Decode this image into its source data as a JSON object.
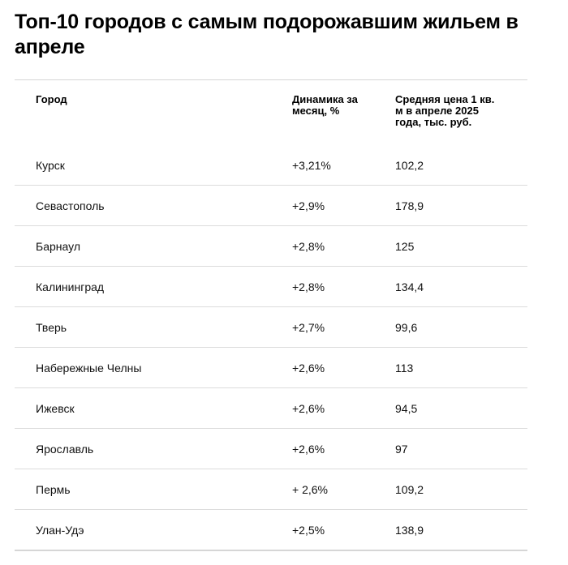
{
  "title": "Топ-10 городов с самым подорожавшим жильем в апреле",
  "table": {
    "headers": [
      "Город",
      "Динамика за месяц, %",
      "Средняя цена 1 кв. м в апреле 2025 года, тыс. руб."
    ],
    "rows": [
      [
        "Курск",
        "+3,21%",
        "102,2"
      ],
      [
        "Севастополь",
        "+2,9%",
        "178,9"
      ],
      [
        "Барнаул",
        "+2,8%",
        "125"
      ],
      [
        "Калининград",
        "+2,8%",
        "134,4"
      ],
      [
        "Тверь",
        "+2,7%",
        "99,6"
      ],
      [
        "Набережные Челны",
        "+2,6%",
        "113"
      ],
      [
        "Ижевск",
        "+2,6%",
        "94,5"
      ],
      [
        "Ярославль",
        "+2,6%",
        "97"
      ],
      [
        "Пермь",
        "+ 2,6%",
        "109,2"
      ],
      [
        "Улан-Удэ",
        "+2,5%",
        "138,9"
      ]
    ]
  }
}
